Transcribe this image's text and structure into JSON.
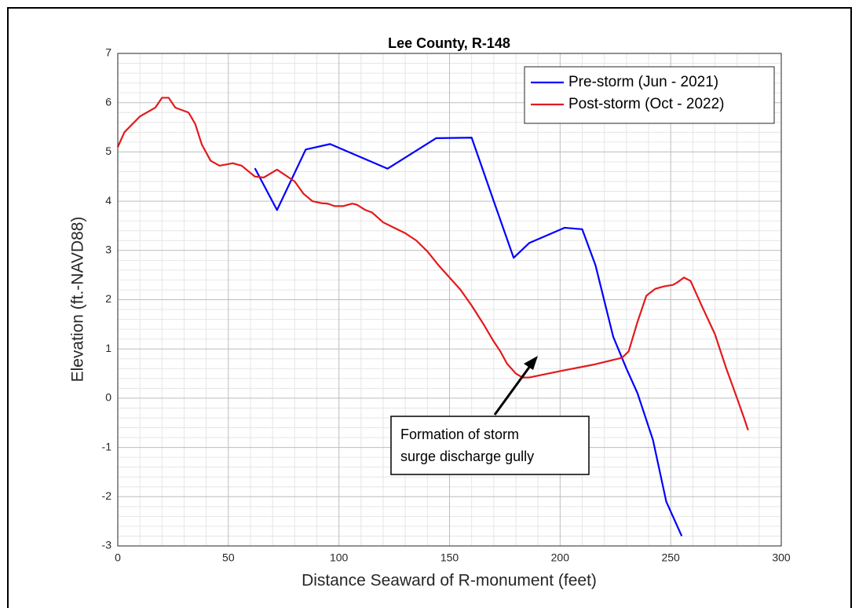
{
  "chart_data": {
    "type": "line",
    "title": "Lee County, R-148",
    "x_label": "Distance Seaward of R-monument (feet)",
    "y_label": "Elevation (ft.-NAVD88)",
    "xlim": [
      0,
      300
    ],
    "xticks": [
      0,
      50,
      100,
      150,
      200,
      250,
      300
    ],
    "ylim": [
      -3,
      7
    ],
    "yticks": [
      -3,
      -2,
      -1,
      0,
      1,
      2,
      3,
      4,
      5,
      6,
      7
    ],
    "grid": true,
    "minor_grid": true,
    "legend": "northeast",
    "annotation": [
      "Formation of storm",
      "surge discharge gully"
    ],
    "series": [
      {
        "name": "Pre-storm (Jun - 2021)",
        "color": "#0000ff",
        "x": [
          62,
          72,
          85,
          96,
          122,
          144,
          160,
          170,
          179,
          186,
          202,
          210,
          216,
          224,
          230,
          235,
          242,
          248,
          255
        ],
        "values": [
          4.67,
          3.82,
          5.05,
          5.16,
          4.66,
          5.28,
          5.29,
          4.0,
          2.85,
          3.15,
          3.46,
          3.43,
          2.7,
          1.25,
          0.6,
          0.1,
          -0.85,
          -2.1,
          -2.8
        ]
      },
      {
        "name": "Post-storm (Oct - 2022)",
        "color": "#e31a1c",
        "x": [
          0,
          3,
          10,
          17,
          20,
          23,
          26,
          32,
          35,
          38,
          42,
          46,
          52,
          56,
          62,
          66,
          72,
          80,
          84,
          88,
          92,
          95,
          98,
          102,
          106,
          108,
          112,
          115,
          120,
          125,
          130,
          135,
          140,
          145,
          150,
          155,
          160,
          165,
          170,
          173,
          176,
          180,
          183,
          186,
          200,
          215,
          228,
          231,
          235,
          239,
          243,
          247,
          251,
          253,
          256,
          259,
          264,
          270,
          275,
          280,
          283,
          285
        ],
        "values": [
          5.1,
          5.4,
          5.72,
          5.9,
          6.1,
          6.1,
          5.9,
          5.8,
          5.57,
          5.15,
          4.82,
          4.72,
          4.77,
          4.72,
          4.5,
          4.48,
          4.64,
          4.4,
          4.15,
          4.0,
          3.96,
          3.95,
          3.9,
          3.9,
          3.95,
          3.93,
          3.82,
          3.77,
          3.57,
          3.46,
          3.35,
          3.2,
          2.98,
          2.7,
          2.45,
          2.2,
          1.88,
          1.53,
          1.15,
          0.95,
          0.7,
          0.5,
          0.42,
          0.42,
          0.55,
          0.68,
          0.82,
          0.95,
          1.55,
          2.08,
          2.22,
          2.27,
          2.3,
          2.35,
          2.45,
          2.38,
          1.88,
          1.3,
          0.62,
          0,
          -0.38,
          -0.65
        ]
      }
    ]
  }
}
